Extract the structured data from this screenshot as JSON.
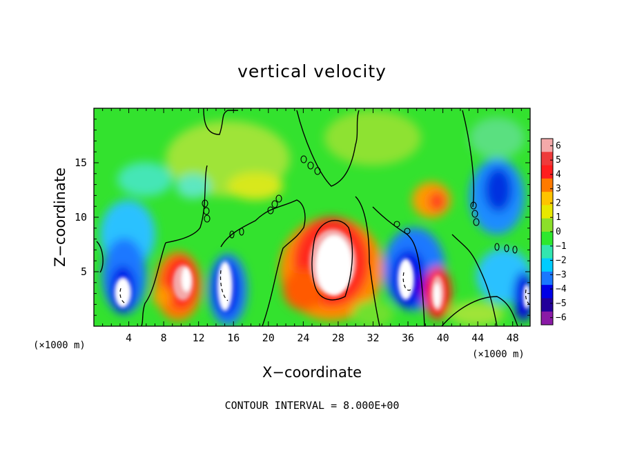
{
  "chart_data": {
    "type": "heatmap",
    "title": "vertical velocity",
    "xlabel": "X−coordinate",
    "ylabel": "Z−coordinate",
    "x_unit_left": "(×1000 m)",
    "x_unit_right": "(×1000 m)",
    "xlim": [
      0,
      50
    ],
    "ylim": [
      0,
      20
    ],
    "x_ticks": [
      4,
      8,
      12,
      16,
      20,
      24,
      28,
      32,
      36,
      40,
      44,
      48
    ],
    "y_ticks": [
      5,
      10,
      15
    ],
    "colorbar_ticks": [
      "6",
      "5",
      "4",
      "3",
      "2",
      "1",
      "0",
      "−1",
      "−2",
      "−3",
      "−4",
      "−5",
      "−6"
    ],
    "colorbar_range": [
      -6,
      6
    ],
    "colorbar_colors": [
      "#f4a9a9",
      "#ee3b3b",
      "#ff1e1e",
      "#ff7a00",
      "#ffc400",
      "#e8e800",
      "#8cdf2a",
      "#2ee82e",
      "#33e6b0",
      "#00ccff",
      "#1a78ff",
      "#0000e6",
      "#22009a",
      "#8a1aa6"
    ],
    "cells": [
      {
        "x": 3,
        "z": 3,
        "w": -7
      },
      {
        "x": 10,
        "z": 3.5,
        "w": 6
      },
      {
        "x": 15,
        "z": 3.5,
        "w": -7
      },
      {
        "x": 27,
        "z": 5.5,
        "w": 8
      },
      {
        "x": 36,
        "z": 4,
        "w": -7
      },
      {
        "x": 40,
        "z": 3,
        "w": 7
      },
      {
        "x": 49.5,
        "z": 2.5,
        "w": -6
      },
      {
        "x": 46,
        "z": 12,
        "w": -4
      },
      {
        "x": 39.5,
        "z": 11,
        "w": 3
      },
      {
        "x": 19.5,
        "z": 12,
        "w": 1.5
      },
      {
        "x": 4.5,
        "z": 9,
        "w": -3
      },
      {
        "x": 23,
        "z": 3,
        "w": 4
      }
    ],
    "contour_interval_label": "CONTOUR INTERVAL = 8.000E+00"
  }
}
